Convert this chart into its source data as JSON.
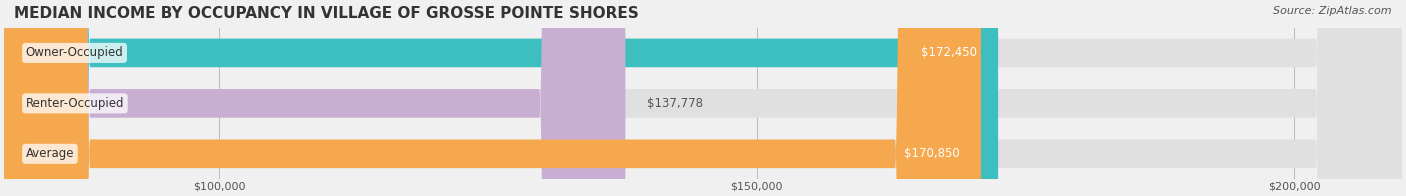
{
  "title": "MEDIAN INCOME BY OCCUPANCY IN VILLAGE OF GROSSE POINTE SHORES",
  "source": "Source: ZipAtlas.com",
  "categories": [
    "Owner-Occupied",
    "Renter-Occupied",
    "Average"
  ],
  "values": [
    172450,
    137778,
    170850
  ],
  "bar_colors": [
    "#3dbfbf",
    "#c9aed4",
    "#f5a84e"
  ],
  "label_colors": [
    "#ffffff",
    "#555555",
    "#ffffff"
  ],
  "xlim": [
    80000,
    210000
  ],
  "xticks": [
    100000,
    150000,
    200000
  ],
  "xtick_labels": [
    "$100,000",
    "$150,000",
    "$200,000"
  ],
  "value_labels": [
    "$172,450",
    "$137,778",
    "$170,850"
  ],
  "title_fontsize": 11,
  "source_fontsize": 8,
  "bar_height": 0.55,
  "background_color": "#f0f0f0",
  "bar_bg_color": "#e8e8e8",
  "title_color": "#333333",
  "source_color": "#555555",
  "tick_color": "#555555"
}
